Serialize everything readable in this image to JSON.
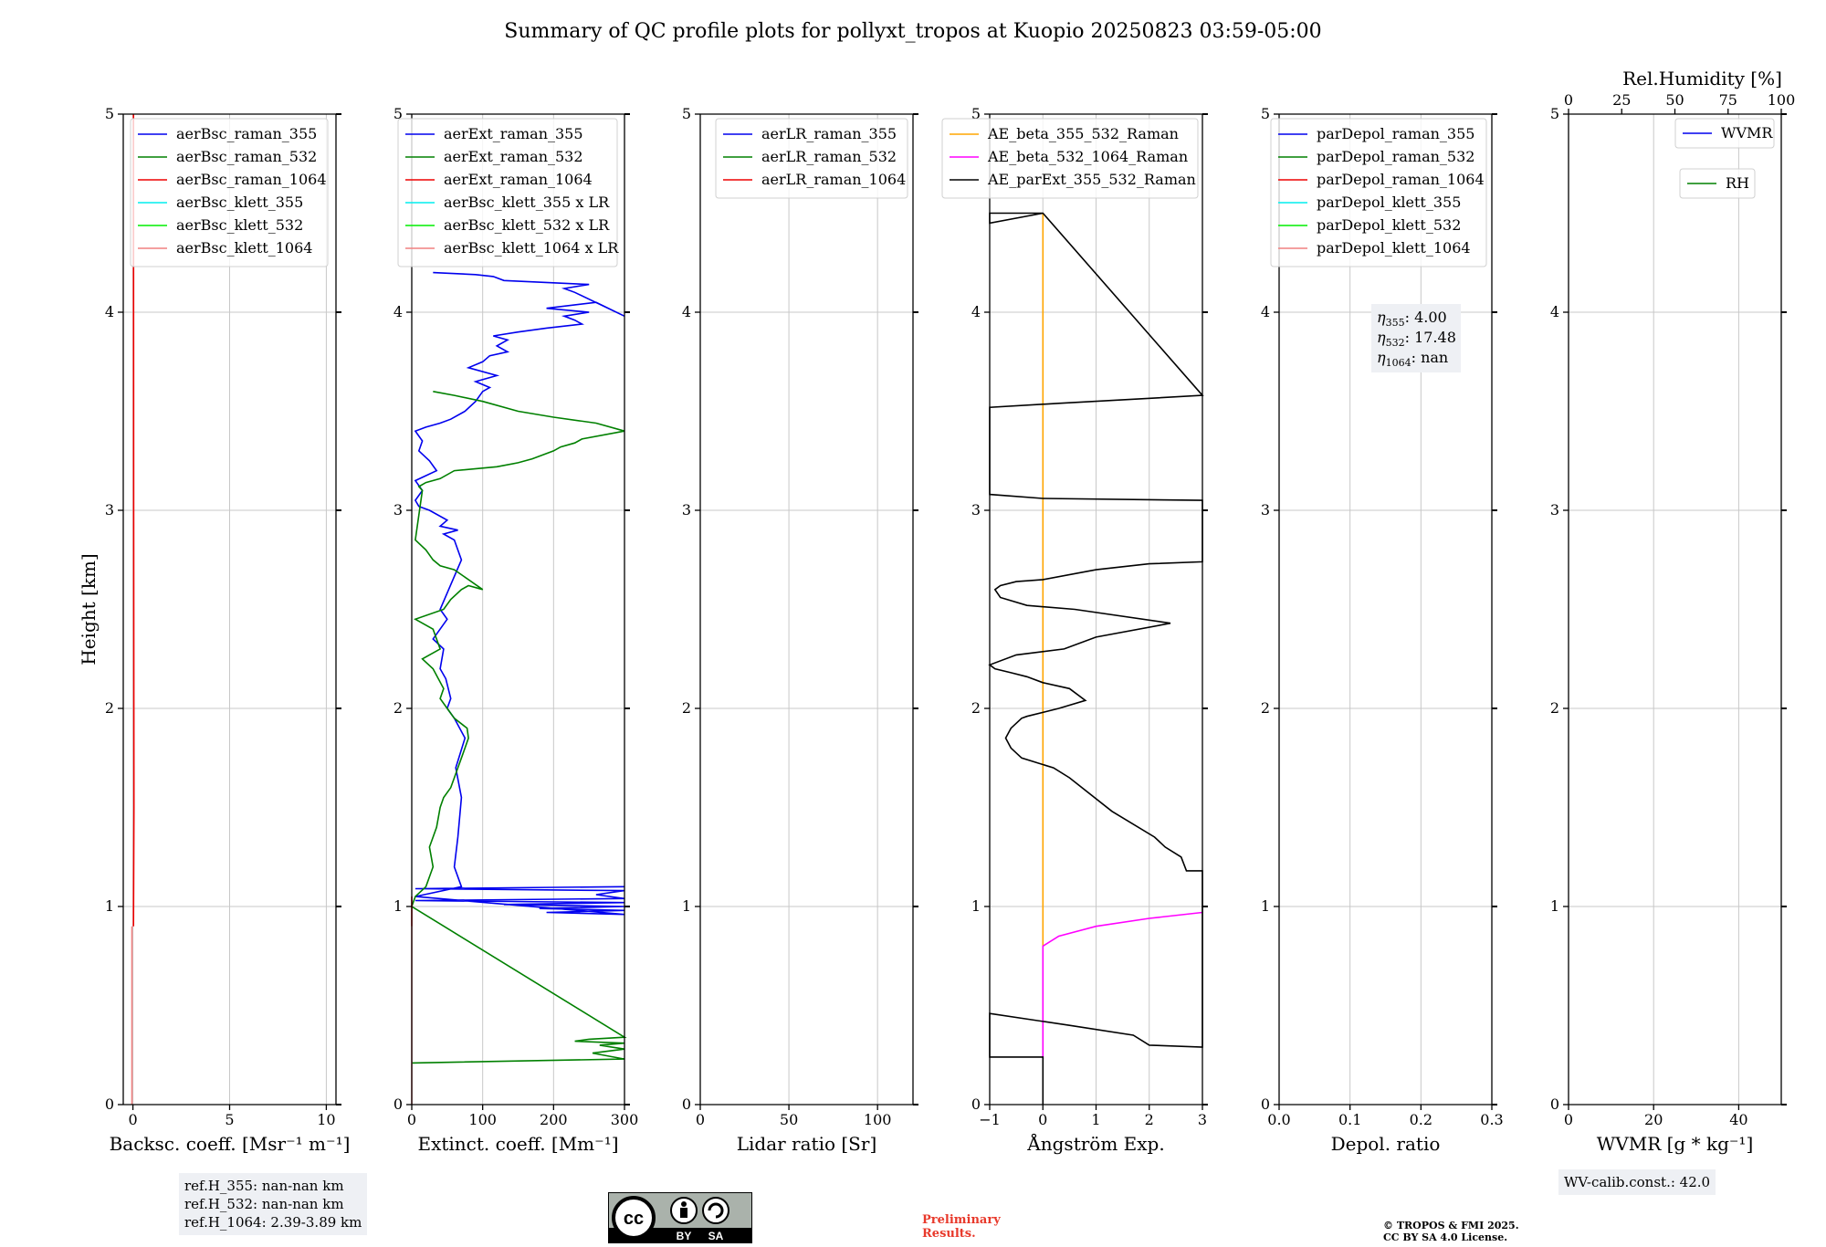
{
  "title": "Summary of QC profile plots for pollyxt_tropos at Kuopio 20250823 03:59-05:00",
  "colors": {
    "blue": "#0000ee",
    "green": "#008000",
    "red": "#ee0000",
    "cyan": "#00eeee",
    "lime": "#00ee00",
    "salmon": "#f08080",
    "orange": "#ffa500",
    "magenta": "#ff00ff",
    "black": "#000000",
    "grid": "#c8c8c8"
  },
  "chart_data": [
    {
      "type": "line",
      "id": "backscatter",
      "xlabel": "Backsc. coeff. [Msr⁻¹ m⁻¹]",
      "ylabel": "Height [km]",
      "xlim": [
        -0.5,
        10.5
      ],
      "ylim": [
        0,
        5
      ],
      "xticks": [
        "0",
        "5",
        "10"
      ],
      "yticks": [
        "0",
        "1",
        "2",
        "3",
        "4",
        "5"
      ],
      "grid": true,
      "legend_position": "top-right",
      "series": [
        {
          "name": "aerBsc_raman_355",
          "color": "blue",
          "x": [],
          "y": []
        },
        {
          "name": "aerBsc_raman_532",
          "color": "green",
          "x": [],
          "y": []
        },
        {
          "name": "aerBsc_raman_1064",
          "color": "red",
          "x": [
            0.03,
            0.05,
            0.04,
            0.03
          ],
          "y": [
            0.9,
            1.5,
            3.0,
            5.0
          ]
        },
        {
          "name": "aerBsc_klett_355",
          "color": "cyan",
          "x": [],
          "y": []
        },
        {
          "name": "aerBsc_klett_532",
          "color": "lime",
          "x": [],
          "y": []
        },
        {
          "name": "aerBsc_klett_1064",
          "color": "salmon",
          "x": [
            -0.05,
            -0.05
          ],
          "y": [
            0,
            0.9
          ]
        }
      ]
    },
    {
      "type": "line",
      "id": "extinction",
      "xlabel": "Extinct. coeff. [Mm⁻¹]",
      "ylabel": "",
      "xlim": [
        0,
        300
      ],
      "ylim": [
        0,
        5
      ],
      "xticks": [
        "0",
        "100",
        "200",
        "300"
      ],
      "yticks": [
        "0",
        "1",
        "2",
        "3",
        "4",
        "5"
      ],
      "grid": true,
      "legend_position": "top-right",
      "series": [
        {
          "name": "aerExt_raman_355",
          "color": "blue",
          "x": [
            300,
            5,
            300,
            260,
            300,
            5,
            300,
            130,
            300,
            180,
            300,
            190,
            300,
            5,
            70,
            60,
            65,
            70,
            62,
            75,
            60,
            50,
            55,
            48,
            40,
            45,
            30,
            50,
            40,
            70,
            60,
            45,
            65,
            40,
            50,
            25,
            10,
            5,
            15,
            5,
            35,
            25,
            10,
            15,
            5,
            20,
            40,
            55,
            75,
            90,
            100,
            110,
            90,
            120,
            80,
            100,
            110,
            135,
            120,
            135,
            115,
            150,
            190,
            240,
            230,
            215,
            250,
            190,
            260,
            300,
            230,
            215,
            250,
            130,
            115,
            90,
            30
          ],
          "y": [
            1.1,
            1.09,
            1.08,
            1.06,
            1.04,
            1.03,
            1.02,
            1.01,
            1.0,
            0.99,
            0.98,
            0.97,
            0.96,
            1.05,
            1.1,
            1.2,
            1.35,
            1.55,
            1.7,
            1.85,
            1.95,
            2.0,
            2.05,
            2.15,
            2.2,
            2.3,
            2.35,
            2.45,
            2.5,
            2.75,
            2.85,
            2.88,
            2.9,
            2.92,
            2.95,
            3.0,
            3.02,
            3.05,
            3.1,
            3.15,
            3.2,
            3.25,
            3.3,
            3.35,
            3.4,
            3.42,
            3.44,
            3.46,
            3.5,
            3.55,
            3.6,
            3.62,
            3.65,
            3.68,
            3.72,
            3.75,
            3.78,
            3.8,
            3.83,
            3.86,
            3.88,
            3.9,
            3.92,
            3.94,
            3.96,
            3.98,
            4.0,
            4.02,
            4.05,
            3.98,
            4.1,
            4.12,
            4.14,
            4.16,
            4.18,
            4.19,
            4.2
          ]
        },
        {
          "name": "aerExt_raman_532",
          "color": "green",
          "x": [
            0,
            300,
            255,
            300,
            265,
            300,
            230,
            250,
            300,
            0,
            5,
            20,
            30,
            25,
            35,
            40,
            45,
            55,
            60,
            65,
            70,
            75,
            80,
            78,
            60,
            50,
            40,
            45,
            30,
            15,
            40,
            30,
            5,
            45,
            55,
            70,
            80,
            100,
            60,
            40,
            30,
            20,
            5,
            15,
            10,
            20,
            40,
            60,
            120,
            150,
            170,
            200,
            210,
            230,
            240,
            300,
            260,
            200,
            150,
            100,
            60,
            30
          ],
          "y": [
            0.21,
            0.23,
            0.26,
            0.28,
            0.3,
            0.31,
            0.32,
            0.33,
            0.34,
            1.0,
            1.05,
            1.1,
            1.2,
            1.3,
            1.4,
            1.5,
            1.55,
            1.6,
            1.65,
            1.7,
            1.75,
            1.8,
            1.85,
            1.9,
            1.95,
            2.0,
            2.05,
            2.1,
            2.2,
            2.25,
            2.3,
            2.4,
            2.45,
            2.5,
            2.55,
            2.6,
            2.62,
            2.6,
            2.7,
            2.72,
            2.75,
            2.8,
            2.85,
            3.1,
            3.12,
            3.14,
            3.16,
            3.2,
            3.22,
            3.24,
            3.26,
            3.3,
            3.32,
            3.34,
            3.36,
            3.4,
            3.44,
            3.47,
            3.5,
            3.55,
            3.58,
            3.6
          ]
        },
        {
          "name": "aerExt_raman_1064",
          "color": "red",
          "x": [
            0,
            0
          ],
          "y": [
            0.9,
            1.05
          ]
        },
        {
          "name": "aerBsc_klett_355 x LR",
          "color": "cyan",
          "x": [],
          "y": []
        },
        {
          "name": "aerBsc_klett_532 x LR",
          "color": "lime",
          "x": [],
          "y": []
        },
        {
          "name": "aerBsc_klett_1064 x LR",
          "color": "salmon",
          "x": [
            0,
            0
          ],
          "y": [
            0,
            0.9
          ]
        }
      ]
    },
    {
      "type": "line",
      "id": "lidar-ratio",
      "xlabel": "Lidar ratio [Sr]",
      "ylabel": "",
      "xlim": [
        0,
        120
      ],
      "ylim": [
        0,
        5
      ],
      "xticks": [
        "0",
        "50",
        "100"
      ],
      "yticks": [
        "0",
        "1",
        "2",
        "3",
        "4",
        "5"
      ],
      "grid": true,
      "legend_position": "top-right",
      "series": [
        {
          "name": "aerLR_raman_355",
          "color": "blue",
          "x": [],
          "y": []
        },
        {
          "name": "aerLR_raman_532",
          "color": "green",
          "x": [],
          "y": []
        },
        {
          "name": "aerLR_raman_1064",
          "color": "red",
          "x": [],
          "y": []
        }
      ]
    },
    {
      "type": "line",
      "id": "angstrom",
      "xlabel": "Ångström Exp.",
      "ylabel": "",
      "xlim": [
        -1,
        3
      ],
      "ylim": [
        0,
        5
      ],
      "xticks": [
        "−1",
        "0",
        "1",
        "2",
        "3"
      ],
      "yticks": [
        "0",
        "1",
        "2",
        "3",
        "4",
        "5"
      ],
      "grid": true,
      "legend_position": "top-right",
      "series": [
        {
          "name": "AE_beta_355_532_Raman",
          "color": "orange",
          "x": [
            0,
            0
          ],
          "y": [
            0.8,
            4.5
          ]
        },
        {
          "name": "AE_beta_532_1064_Raman",
          "color": "magenta",
          "x": [
            0,
            0,
            0.3,
            1.0,
            2.0,
            3.0
          ],
          "y": [
            0.23,
            0.8,
            0.85,
            0.9,
            0.94,
            0.97
          ]
        },
        {
          "name": "AE_parExt_355_532_Raman",
          "color": "black",
          "x": [
            0,
            0,
            -1,
            -1,
            0.5,
            1.7,
            2.0,
            3.0,
            3.0,
            2.7,
            2.6,
            2.3,
            2.1,
            1.3,
            0.5,
            0.2,
            -0.4,
            -0.6,
            -0.7,
            -0.6,
            -0.4,
            -0.3,
            0.3,
            0.8,
            0.5,
            0.0,
            -0.3,
            -0.6,
            -0.9,
            -1.0,
            -0.5,
            0.4,
            1.0,
            2.4,
            0.6,
            -0.3,
            -0.8,
            -0.9,
            -0.8,
            -0.5,
            0.0,
            1.0,
            2.0,
            3.0,
            3.0,
            0.0,
            -1.0,
            -1.0,
            0.3,
            3.0,
            3.0,
            0.0,
            -1.0,
            -1.0,
            -1.0,
            0.0,
            0.0,
            -1.0
          ],
          "y": [
            0,
            0.24,
            0.24,
            0.46,
            0.4,
            0.35,
            0.3,
            0.29,
            1.18,
            1.18,
            1.25,
            1.3,
            1.35,
            1.48,
            1.65,
            1.7,
            1.75,
            1.8,
            1.85,
            1.9,
            1.95,
            1.96,
            2.0,
            2.04,
            2.1,
            2.13,
            2.16,
            2.18,
            2.2,
            2.22,
            2.27,
            2.3,
            2.36,
            2.43,
            2.5,
            2.52,
            2.56,
            2.6,
            2.62,
            2.64,
            2.65,
            2.7,
            2.73,
            2.74,
            3.05,
            3.06,
            3.08,
            3.52,
            3.54,
            3.58,
            3.58,
            4.5,
            4.5,
            4.45,
            4.45,
            4.5,
            4.5,
            4.45
          ]
        }
      ]
    },
    {
      "type": "line",
      "id": "depol",
      "xlabel": "Depol. ratio",
      "ylabel": "",
      "xlim": [
        0,
        0.3
      ],
      "ylim": [
        0,
        5
      ],
      "xticks": [
        "0.0",
        "0.1",
        "0.2",
        "0.3"
      ],
      "yticks": [
        "0",
        "1",
        "2",
        "3",
        "4",
        "5"
      ],
      "grid": true,
      "legend_position": "top-right",
      "series": [
        {
          "name": "parDepol_raman_355",
          "color": "blue",
          "x": [],
          "y": []
        },
        {
          "name": "parDepol_raman_532",
          "color": "green",
          "x": [],
          "y": []
        },
        {
          "name": "parDepol_raman_1064",
          "color": "red",
          "x": [],
          "y": []
        },
        {
          "name": "parDepol_klett_355",
          "color": "cyan",
          "x": [],
          "y": []
        },
        {
          "name": "parDepol_klett_532",
          "color": "lime",
          "x": [],
          "y": []
        },
        {
          "name": "parDepol_klett_1064",
          "color": "salmon",
          "x": [],
          "y": []
        }
      ],
      "annotation": {
        "lines": [
          "η355: 4.00",
          "η532: 17.48",
          "η1064: nan"
        ]
      }
    },
    {
      "type": "line",
      "id": "wv",
      "xlabel": "WVMR [g * kg⁻¹]",
      "ylabel": "",
      "xlim": [
        0,
        50
      ],
      "ylim": [
        0,
        5
      ],
      "xticks": [
        "0",
        "20",
        "40"
      ],
      "yticks": [
        "0",
        "1",
        "2",
        "3",
        "4",
        "5"
      ],
      "top_xlabel": "Rel.Humidity [%]",
      "top_xlim": [
        0,
        100
      ],
      "top_xticks": [
        "0",
        "25",
        "50",
        "75",
        "100"
      ],
      "grid": true,
      "legend_position": "top-right",
      "series": [
        {
          "name": "WVMR",
          "color": "blue",
          "x": [],
          "y": []
        },
        {
          "name": "RH",
          "color": "green",
          "x": [],
          "y": []
        }
      ]
    }
  ],
  "info": {
    "refH": [
      "ref.H_355: nan-nan km",
      "ref.H_532: nan-nan km",
      "ref.H_1064: 2.39-3.89 km"
    ],
    "wv_calib": "WV-calib.const.: 42.0",
    "license_badge": {
      "by": "BY",
      "sa": "SA",
      "cc": "cc"
    },
    "preliminary": [
      "Preliminary",
      "Results."
    ],
    "copyright": [
      "© TROPOS & FMI 2025.",
      "CC BY SA 4.0 License."
    ]
  }
}
